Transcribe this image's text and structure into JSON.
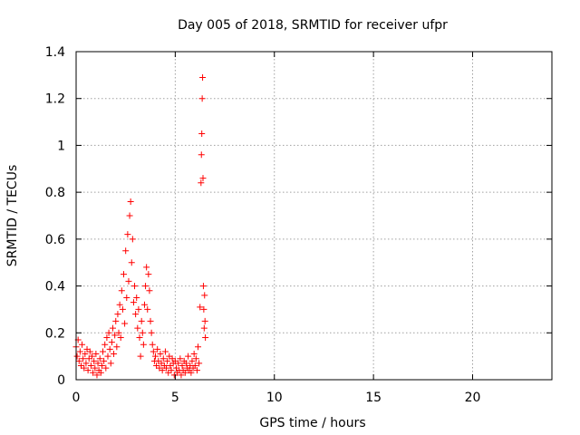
{
  "chart_data": {
    "type": "scatter",
    "title": "Day 005 of 2018, SRMTID for receiver ufpr",
    "xlabel": "GPS time / hours",
    "ylabel": "SRMTID / TECUs",
    "xlim": [
      0,
      24
    ],
    "ylim": [
      0,
      1.4
    ],
    "x_ticks": [
      0,
      5,
      10,
      15,
      20
    ],
    "x_tick_labels": [
      "0",
      "5",
      "10",
      "15",
      "20"
    ],
    "y_ticks": [
      0,
      0.2,
      0.4,
      0.6,
      0.8,
      1,
      1.2,
      1.4
    ],
    "y_tick_labels": [
      "0",
      "0.2",
      "0.4",
      "0.6",
      "0.8",
      "1",
      "1.2",
      "1.4"
    ],
    "grid": true,
    "marker": "+",
    "color": "#ff0000",
    "series": [
      {
        "name": "SRMTID",
        "points": [
          [
            0.0,
            0.14
          ],
          [
            0.05,
            0.1
          ],
          [
            0.1,
            0.17
          ],
          [
            0.15,
            0.08
          ],
          [
            0.2,
            0.12
          ],
          [
            0.25,
            0.06
          ],
          [
            0.3,
            0.15
          ],
          [
            0.35,
            0.09
          ],
          [
            0.4,
            0.05
          ],
          [
            0.45,
            0.11
          ],
          [
            0.5,
            0.07
          ],
          [
            0.55,
            0.13
          ],
          [
            0.6,
            0.04
          ],
          [
            0.65,
            0.09
          ],
          [
            0.7,
            0.12
          ],
          [
            0.75,
            0.06
          ],
          [
            0.8,
            0.1
          ],
          [
            0.85,
            0.03
          ],
          [
            0.9,
            0.08
          ],
          [
            0.95,
            0.05
          ],
          [
            1.0,
            0.11
          ],
          [
            1.05,
            0.02
          ],
          [
            1.1,
            0.07
          ],
          [
            1.15,
            0.04
          ],
          [
            1.2,
            0.09
          ],
          [
            1.25,
            0.03
          ],
          [
            1.3,
            0.06
          ],
          [
            1.35,
            0.12
          ],
          [
            1.4,
            0.08
          ],
          [
            1.45,
            0.15
          ],
          [
            1.5,
            0.05
          ],
          [
            1.55,
            0.18
          ],
          [
            1.6,
            0.1
          ],
          [
            1.65,
            0.2
          ],
          [
            1.7,
            0.13
          ],
          [
            1.75,
            0.07
          ],
          [
            1.8,
            0.16
          ],
          [
            1.85,
            0.22
          ],
          [
            1.9,
            0.11
          ],
          [
            1.95,
            0.19
          ],
          [
            2.0,
            0.25
          ],
          [
            2.05,
            0.14
          ],
          [
            2.1,
            0.28
          ],
          [
            2.15,
            0.2
          ],
          [
            2.2,
            0.32
          ],
          [
            2.25,
            0.18
          ],
          [
            2.3,
            0.38
          ],
          [
            2.35,
            0.3
          ],
          [
            2.4,
            0.45
          ],
          [
            2.45,
            0.24
          ],
          [
            2.5,
            0.55
          ],
          [
            2.55,
            0.35
          ],
          [
            2.6,
            0.62
          ],
          [
            2.65,
            0.42
          ],
          [
            2.7,
            0.7
          ],
          [
            2.75,
            0.76
          ],
          [
            2.8,
            0.5
          ],
          [
            2.85,
            0.6
          ],
          [
            2.9,
            0.33
          ],
          [
            2.95,
            0.4
          ],
          [
            3.0,
            0.28
          ],
          [
            3.05,
            0.35
          ],
          [
            3.1,
            0.22
          ],
          [
            3.15,
            0.3
          ],
          [
            3.2,
            0.18
          ],
          [
            3.25,
            0.1
          ],
          [
            3.3,
            0.25
          ],
          [
            3.35,
            0.2
          ],
          [
            3.4,
            0.15
          ],
          [
            3.45,
            0.32
          ],
          [
            3.5,
            0.4
          ],
          [
            3.55,
            0.48
          ],
          [
            3.6,
            0.3
          ],
          [
            3.65,
            0.45
          ],
          [
            3.7,
            0.38
          ],
          [
            3.75,
            0.25
          ],
          [
            3.8,
            0.2
          ],
          [
            3.85,
            0.15
          ],
          [
            3.9,
            0.12
          ],
          [
            3.95,
            0.08
          ],
          [
            4.0,
            0.1
          ],
          [
            4.05,
            0.06
          ],
          [
            4.1,
            0.13
          ],
          [
            4.15,
            0.08
          ],
          [
            4.2,
            0.05
          ],
          [
            4.25,
            0.11
          ],
          [
            4.3,
            0.07
          ],
          [
            4.35,
            0.04
          ],
          [
            4.4,
            0.09
          ],
          [
            4.45,
            0.06
          ],
          [
            4.5,
            0.12
          ],
          [
            4.55,
            0.05
          ],
          [
            4.6,
            0.08
          ],
          [
            4.65,
            0.03
          ],
          [
            4.7,
            0.1
          ],
          [
            4.75,
            0.06
          ],
          [
            4.8,
            0.04
          ],
          [
            4.85,
            0.09
          ],
          [
            4.9,
            0.07
          ],
          [
            4.95,
            0.02
          ],
          [
            5.0,
            0.08
          ],
          [
            5.05,
            0.05
          ],
          [
            5.1,
            0.03
          ],
          [
            5.15,
            0.07
          ],
          [
            5.2,
            0.04
          ],
          [
            5.25,
            0.09
          ],
          [
            5.3,
            0.02
          ],
          [
            5.35,
            0.06
          ],
          [
            5.4,
            0.04
          ],
          [
            5.45,
            0.08
          ],
          [
            5.5,
            0.03
          ],
          [
            5.55,
            0.07
          ],
          [
            5.6,
            0.05
          ],
          [
            5.65,
            0.1
          ],
          [
            5.7,
            0.04
          ],
          [
            5.75,
            0.06
          ],
          [
            5.8,
            0.03
          ],
          [
            5.85,
            0.08
          ],
          [
            5.9,
            0.05
          ],
          [
            5.95,
            0.11
          ],
          [
            6.0,
            0.06
          ],
          [
            6.05,
            0.09
          ],
          [
            6.1,
            0.04
          ],
          [
            6.15,
            0.14
          ],
          [
            6.2,
            0.07
          ],
          [
            6.25,
            0.31
          ],
          [
            6.3,
            0.84
          ],
          [
            6.32,
            0.96
          ],
          [
            6.34,
            1.05
          ],
          [
            6.36,
            1.2
          ],
          [
            6.38,
            1.29
          ],
          [
            6.4,
            0.86
          ],
          [
            6.42,
            0.4
          ],
          [
            6.44,
            0.3
          ],
          [
            6.46,
            0.22
          ],
          [
            6.48,
            0.36
          ],
          [
            6.5,
            0.25
          ],
          [
            6.52,
            0.18
          ]
        ]
      }
    ]
  }
}
